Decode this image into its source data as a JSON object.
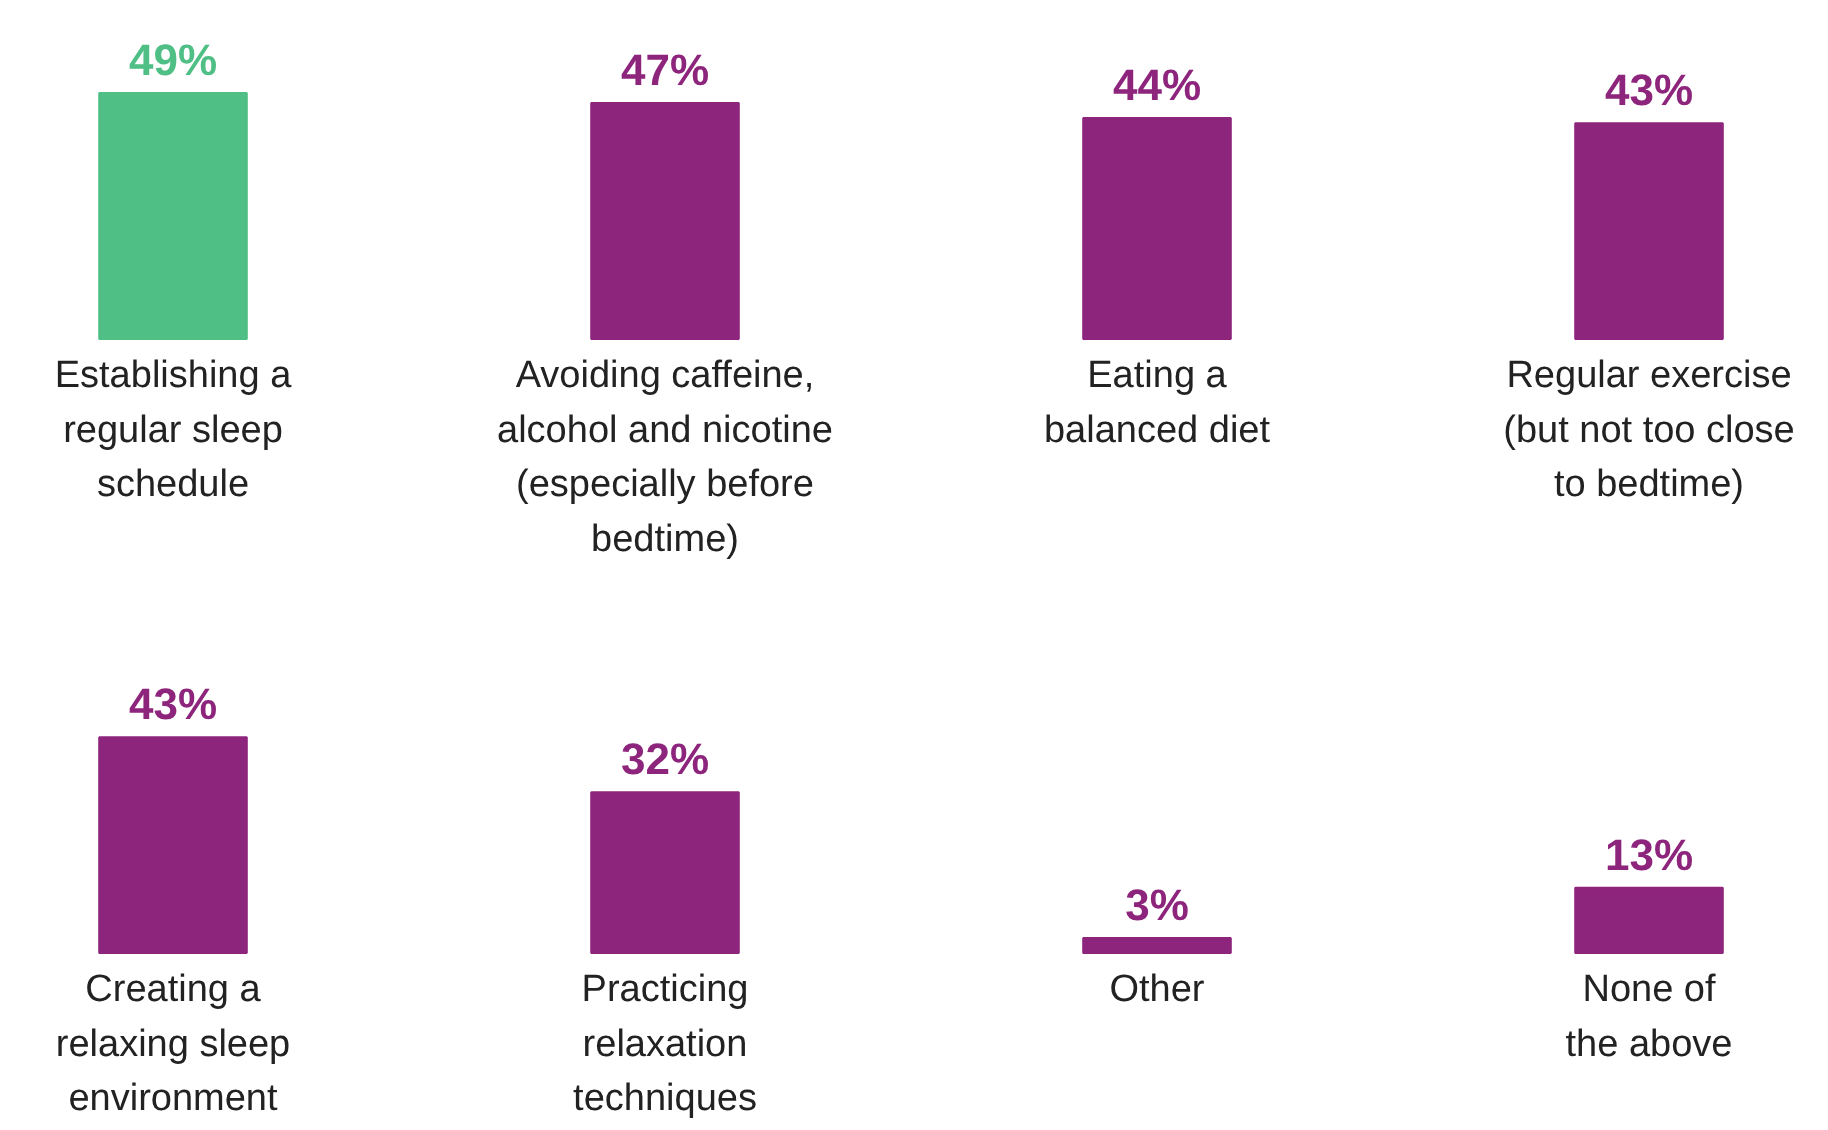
{
  "chart_data": [
    {
      "type": "bar",
      "categories": [
        "Establishing a\nregular sleep\nschedule",
        "Avoiding caffeine,\nalcohol and nicotine\n(especially before\nbedtime)",
        "Eating a\nbalanced diet",
        "Regular exercise\n(but not too close\nto bedtime)"
      ],
      "values": [
        49,
        47,
        44,
        43
      ],
      "value_labels": [
        "49%",
        "47%",
        "44%",
        "43%"
      ],
      "colors": [
        "#4fbf85",
        "#8e257d",
        "#8e257d",
        "#8e257d"
      ]
    },
    {
      "type": "bar",
      "categories": [
        "Creating a\nrelaxing sleep\nenvironment",
        "Practicing\nrelaxation\ntechniques",
        "Other",
        "None of\nthe above"
      ],
      "values": [
        43,
        32,
        3,
        13
      ],
      "value_labels": [
        "43%",
        "32%",
        "3%",
        "13%"
      ],
      "colors": [
        "#8e257d",
        "#8e257d",
        "#8e257d",
        "#8e257d"
      ]
    }
  ]
}
